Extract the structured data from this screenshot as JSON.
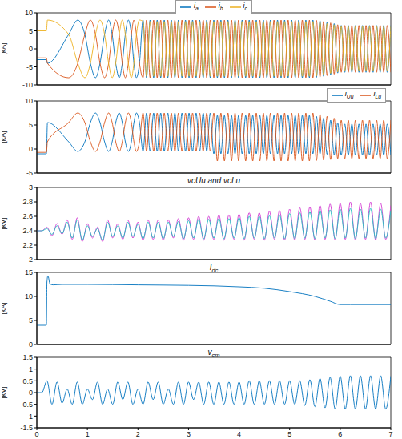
{
  "chart_data": [
    {
      "type": "line",
      "ylabel": "[kA]",
      "legend": "top",
      "tick_labels": "y",
      "grid": false,
      "xlim": [
        0,
        7
      ],
      "xticks": [
        0,
        1,
        2,
        3,
        4,
        5,
        6,
        7
      ],
      "ylim": [
        -10,
        10
      ],
      "yticks": [
        -10,
        -5,
        0,
        5,
        10
      ],
      "x": [
        0,
        0.19,
        0.21,
        0.63,
        0.81,
        0.95,
        1.06,
        1.16,
        1.25,
        1.34,
        1.42,
        1.49,
        1.56,
        1.63,
        1.69,
        1.75,
        1.81,
        1.87,
        1.92,
        1.97,
        2.03,
        2.1,
        2.17,
        2.24,
        2.31,
        2.38,
        2.45,
        2.52,
        2.59,
        2.66,
        2.73,
        2.8,
        2.87,
        2.94,
        3.01,
        3.08,
        3.15,
        3.22,
        3.29,
        3.36,
        3.43,
        3.5,
        3.57,
        3.64,
        3.71,
        3.78,
        3.85,
        3.92,
        3.99,
        4.06,
        4.13,
        4.2,
        4.27,
        4.34,
        4.41,
        4.48,
        4.55,
        4.62,
        4.69,
        4.76,
        4.83,
        4.9,
        4.97,
        5.04,
        5.11,
        5.18,
        5.25,
        5.32,
        5.39,
        5.46,
        5.53,
        5.6,
        5.67,
        5.74,
        5.81,
        5.88,
        5.95,
        6.02,
        6.09,
        6.16,
        6.23,
        6.3,
        6.37,
        6.44,
        6.51,
        6.58,
        6.65,
        6.72,
        6.79,
        6.86,
        6.93,
        7
      ],
      "series": [
        {
          "name": "ia",
          "color": "#0072BD",
          "values": [
            -3,
            -3,
            -4,
            4,
            8,
            4,
            -4,
            -8,
            -4,
            4,
            8,
            4,
            -4,
            -8,
            -4,
            4,
            8,
            4,
            -4,
            -8,
            -4,
            8,
            -8,
            8,
            -8,
            8,
            -8,
            8,
            -8,
            8,
            -8,
            8,
            -8,
            8,
            -8,
            8,
            -8,
            8,
            -8,
            8,
            -8,
            8,
            -8,
            8,
            -8,
            8,
            -8,
            8,
            -8,
            8,
            -8,
            8,
            -8,
            8,
            -8,
            8,
            -8,
            8,
            -8,
            8,
            -8,
            8,
            -8,
            8,
            -8,
            8,
            -8,
            8,
            -8,
            8,
            -7.9,
            7.8,
            -7.6,
            7.4,
            -7.2,
            7,
            -6.7,
            6.5,
            -6.5,
            6.5,
            -6.5,
            6.5,
            -6.5,
            6.5,
            -6.5,
            6.5,
            -6.5,
            6.5,
            -6.5,
            6.5,
            -6.5,
            6.5
          ]
        },
        {
          "name": "ib",
          "color": "#D95319",
          "values": [
            -2.5,
            -2.5,
            -4,
            -8,
            -4,
            4,
            8,
            4,
            -4,
            -8,
            -4,
            4,
            8,
            4,
            -4,
            -8,
            -4,
            4,
            8,
            4,
            -4,
            -8,
            8,
            -8,
            8,
            -8,
            8,
            -8,
            8,
            -8,
            8,
            -8,
            8,
            -8,
            8,
            -8,
            8,
            -8,
            8,
            -8,
            8,
            -8,
            8,
            -8,
            8,
            -8,
            8,
            -8,
            8,
            -8,
            8,
            -8,
            8,
            -8,
            8,
            -8,
            8,
            -8,
            8,
            -8,
            8,
            -8,
            8,
            -8,
            8,
            -8,
            8,
            -8,
            8,
            -8,
            7.9,
            -7.8,
            7.6,
            -7.4,
            7.2,
            -7,
            6.7,
            -6.5,
            6.5,
            -6.5,
            6.5,
            -6.5,
            6.5,
            -6.5,
            6.5,
            -6.5,
            6.5,
            -6.5,
            6.5,
            -6.5,
            6.5,
            -6.5
          ]
        },
        {
          "name": "ic",
          "color": "#EDB120",
          "values": [
            5,
            5,
            8,
            4,
            -4,
            -8,
            -4,
            4,
            8,
            4,
            -4,
            -8,
            -4,
            4,
            8,
            4,
            -4,
            -8,
            -4,
            4,
            8,
            7.6,
            -7.6,
            7.6,
            -7.6,
            7.6,
            -7.6,
            7.6,
            -7.6,
            7.6,
            -7.6,
            7.6,
            -7.6,
            7.6,
            -7.6,
            7.6,
            -7.6,
            7.6,
            -7.6,
            7.6,
            -7.6,
            7.6,
            -7.6,
            7.6,
            -7.6,
            7.6,
            -7.6,
            7.6,
            -7.6,
            7.6,
            -7.6,
            7.6,
            -7.6,
            7.6,
            -7.6,
            7.6,
            -7.6,
            7.6,
            -7.6,
            7.6,
            -7.6,
            7.6,
            -7.6,
            7.6,
            -7.6,
            7.6,
            -7.6,
            7.6,
            -7.6,
            7.6,
            -7.5,
            7.4,
            -7.2,
            7,
            -6.8,
            6.7,
            -6.4,
            6.2,
            -6.2,
            6.2,
            -6.2,
            6.2,
            -6.2,
            6.2,
            -6.2,
            6.2,
            -6.2,
            6.2,
            -6.2,
            6.2,
            -6.2,
            6.2
          ]
        }
      ]
    },
    {
      "type": "line",
      "ylabel": "[kA]",
      "legend": "top right",
      "tick_labels": "y",
      "grid": false,
      "xlim": [
        0,
        7
      ],
      "xticks": [
        0,
        1,
        2,
        3,
        4,
        5,
        6,
        7
      ],
      "ylim": [
        -5,
        10
      ],
      "yticks": [
        -5,
        0,
        5,
        10
      ],
      "x": [
        0,
        0.19,
        0.21,
        0.63,
        0.81,
        0.95,
        1.06,
        1.16,
        1.25,
        1.34,
        1.42,
        1.49,
        1.56,
        1.63,
        1.69,
        1.75,
        1.81,
        1.87,
        1.92,
        1.97,
        2.03,
        2.1,
        2.17,
        2.24,
        2.31,
        2.38,
        2.45,
        2.52,
        2.59,
        2.66,
        2.73,
        2.8,
        2.87,
        2.94,
        3.01,
        3.08,
        3.15,
        3.22,
        3.29,
        3.36,
        3.43,
        3.5,
        3.57,
        3.64,
        3.71,
        3.78,
        3.85,
        3.92,
        3.99,
        4.06,
        4.13,
        4.2,
        4.27,
        4.34,
        4.41,
        4.48,
        4.55,
        4.62,
        4.69,
        4.76,
        4.83,
        4.9,
        4.97,
        5.04,
        5.11,
        5.18,
        5.25,
        5.32,
        5.39,
        5.46,
        5.53,
        5.6,
        5.67,
        5.74,
        5.81,
        5.88,
        5.95,
        6.02,
        6.09,
        6.16,
        6.23,
        6.3,
        6.37,
        6.44,
        6.51,
        6.58,
        6.65,
        6.72,
        6.79,
        6.86,
        6.93,
        7
      ],
      "series": [
        {
          "name": "iUu",
          "color": "#0072BD",
          "values": [
            -1,
            -1,
            5.5,
            1.5,
            -0.5,
            1.5,
            5.5,
            7.5,
            5.5,
            1.5,
            -0.5,
            1.5,
            5.5,
            7.5,
            5.5,
            1.5,
            -0.5,
            1.5,
            5.5,
            7.5,
            5.5,
            -0.5,
            7.5,
            -0.5,
            7.5,
            -0.5,
            7.5,
            -0.5,
            7.5,
            -0.5,
            7.5,
            -0.5,
            7.5,
            -0.5,
            7.5,
            -0.5,
            7.5,
            -0.5,
            7.5,
            -0.5,
            7.5,
            -1,
            7,
            -1,
            7,
            -1,
            7,
            -1,
            7,
            -1,
            7,
            -1,
            7,
            -1,
            7,
            -1,
            7,
            -1,
            7,
            -1,
            7,
            -1,
            7,
            -1,
            7,
            -1,
            7,
            -1,
            7,
            -1,
            6.8,
            -1,
            6.4,
            -1.1,
            6,
            -1.2,
            5.5,
            -1.3,
            5.2,
            -1.3,
            5.2,
            -1.3,
            5.2,
            -1.3,
            5.2,
            -1.3,
            5.2,
            -1.3,
            5.2,
            -1.3,
            5.2,
            -1.3
          ]
        },
        {
          "name": "iLu",
          "color": "#D95319",
          "values": [
            -0.7,
            -0.7,
            1.5,
            5.5,
            7.5,
            5.5,
            1.5,
            -0.5,
            1.5,
            5.5,
            7.5,
            5.5,
            1.5,
            -0.5,
            1.5,
            5.5,
            7.5,
            5.5,
            1.5,
            -0.5,
            1.5,
            7.5,
            -0.5,
            7.5,
            -0.5,
            7.5,
            -0.5,
            7.5,
            -0.5,
            7.5,
            -0.5,
            7.5,
            -0.5,
            7.5,
            -0.5,
            7.5,
            -0.5,
            7.5,
            -0.5,
            7.5,
            -0.5,
            7.5,
            -2.5,
            7.5,
            -2.5,
            7.5,
            -2.5,
            7.5,
            -2.5,
            7.5,
            -2.5,
            7.5,
            -2.5,
            7.5,
            -2.5,
            7.5,
            -2.5,
            7.5,
            -2.5,
            7.5,
            -2.5,
            7.5,
            -2.5,
            7.5,
            -2.5,
            7.5,
            -2.5,
            7.5,
            -2.5,
            7.5,
            -2.4,
            7.2,
            -2.3,
            6.8,
            -2.2,
            6.4,
            -2,
            6,
            -2,
            6,
            -2,
            6,
            -2,
            6,
            -2,
            6,
            -2,
            6,
            -2,
            6,
            -2,
            6
          ]
        }
      ]
    },
    {
      "type": "line",
      "ylabel": "[kV]",
      "annotation": "vcUu and vcLu",
      "tick_labels": "y",
      "grid": false,
      "xlim": [
        0,
        7
      ],
      "xticks": [
        0,
        1,
        2,
        3,
        4,
        5,
        6,
        7
      ],
      "ylim": [
        2,
        3
      ],
      "yticks": [
        2,
        2.2,
        2.4,
        2.6,
        2.8,
        3
      ],
      "x": [
        0,
        0.1,
        0.2,
        0.3,
        0.4,
        0.5,
        0.6,
        0.7,
        0.8,
        0.9,
        1,
        1.1,
        1.2,
        1.3,
        1.4,
        1.5,
        1.6,
        1.7,
        1.8,
        1.9,
        2,
        2.1,
        2.2,
        2.3,
        2.4,
        2.5,
        2.6,
        2.7,
        2.8,
        2.9,
        3,
        3.1,
        3.2,
        3.3,
        3.4,
        3.5,
        3.6,
        3.7,
        3.8,
        3.9,
        4,
        4.1,
        4.2,
        4.3,
        4.4,
        4.5,
        4.6,
        4.7,
        4.8,
        4.9,
        5,
        5.1,
        5.2,
        5.3,
        5.4,
        5.5,
        5.6,
        5.7,
        5.8,
        5.9,
        6,
        6.1,
        6.2,
        6.3,
        6.4,
        6.5,
        6.6,
        6.7,
        6.8,
        6.9,
        7
      ],
      "series": [
        {
          "color": "#D23BD2",
          "values": [
            2.4,
            2.4,
            2.45,
            2.33,
            2.5,
            2.35,
            2.55,
            2.28,
            2.58,
            2.25,
            2.5,
            2.3,
            2.45,
            2.25,
            2.55,
            2.3,
            2.5,
            2.28,
            2.55,
            2.3,
            2.52,
            2.27,
            2.55,
            2.28,
            2.55,
            2.27,
            2.55,
            2.3,
            2.57,
            2.27,
            2.58,
            2.28,
            2.6,
            2.27,
            2.6,
            2.28,
            2.62,
            2.27,
            2.62,
            2.28,
            2.63,
            2.27,
            2.65,
            2.28,
            2.65,
            2.27,
            2.67,
            2.28,
            2.68,
            2.27,
            2.7,
            2.27,
            2.72,
            2.28,
            2.73,
            2.27,
            2.75,
            2.28,
            2.77,
            2.27,
            2.78,
            2.28,
            2.8,
            2.27,
            2.78,
            2.28,
            2.8,
            2.27,
            2.78,
            2.28,
            2.75
          ]
        },
        {
          "color": "#1FBFBF",
          "values": [
            2.4,
            2.4,
            2.43,
            2.35,
            2.47,
            2.36,
            2.52,
            2.3,
            2.55,
            2.27,
            2.47,
            2.32,
            2.43,
            2.27,
            2.52,
            2.32,
            2.47,
            2.3,
            2.52,
            2.32,
            2.49,
            2.29,
            2.52,
            2.3,
            2.52,
            2.29,
            2.52,
            2.32,
            2.53,
            2.29,
            2.54,
            2.3,
            2.56,
            2.29,
            2.56,
            2.3,
            2.57,
            2.29,
            2.57,
            2.3,
            2.58,
            2.29,
            2.6,
            2.3,
            2.6,
            2.29,
            2.61,
            2.3,
            2.62,
            2.29,
            2.64,
            2.29,
            2.65,
            2.3,
            2.66,
            2.29,
            2.68,
            2.3,
            2.69,
            2.29,
            2.7,
            2.3,
            2.71,
            2.29,
            2.7,
            2.3,
            2.71,
            2.29,
            2.7,
            2.3,
            2.68
          ]
        }
      ]
    },
    {
      "type": "line",
      "ylabel": "[kA]",
      "annotation": "Idc",
      "tick_labels": "y",
      "grid": false,
      "xlim": [
        0,
        7
      ],
      "xticks": [
        0,
        1,
        2,
        3,
        4,
        5,
        6,
        7
      ],
      "ylim": [
        0,
        15
      ],
      "yticks": [
        0,
        5,
        10,
        15
      ],
      "x": [
        0,
        0.19,
        0.2,
        0.22,
        0.26,
        0.32,
        0.5,
        1,
        2,
        3,
        3.5,
        4,
        4.5,
        5,
        5.5,
        5.8,
        6,
        6.2,
        7
      ],
      "series": [
        {
          "color": "#0072BD",
          "values": [
            4,
            4,
            13,
            14.3,
            12.6,
            12.4,
            12.5,
            12.5,
            12.4,
            12.3,
            12.2,
            12,
            11.7,
            11,
            10,
            9,
            8.3,
            8.3,
            8.3
          ]
        }
      ]
    },
    {
      "type": "line",
      "ylabel": "[kV]",
      "annotation": "vcm",
      "grid": false,
      "xlim": [
        0,
        7
      ],
      "xticks": [
        0,
        1,
        2,
        3,
        4,
        5,
        6,
        7
      ],
      "ylim": [
        -1.5,
        1.5
      ],
      "yticks": [
        -1.5,
        -1,
        -0.5,
        0,
        0.5,
        1,
        1.5
      ],
      "x": [
        0,
        0.1,
        0.2,
        0.3,
        0.4,
        0.5,
        0.6,
        0.7,
        0.8,
        0.9,
        1,
        1.1,
        1.2,
        1.3,
        1.4,
        1.5,
        1.6,
        1.7,
        1.8,
        1.9,
        2,
        2.1,
        2.2,
        2.3,
        2.4,
        2.5,
        2.6,
        2.7,
        2.8,
        2.9,
        3,
        3.1,
        3.2,
        3.3,
        3.4,
        3.5,
        3.6,
        3.7,
        3.8,
        3.9,
        4,
        4.1,
        4.2,
        4.3,
        4.4,
        4.5,
        4.6,
        4.7,
        4.8,
        4.9,
        5,
        5.1,
        5.2,
        5.3,
        5.4,
        5.5,
        5.6,
        5.7,
        5.8,
        5.9,
        6,
        6.1,
        6.2,
        6.3,
        6.4,
        6.5,
        6.6,
        6.7,
        6.8,
        6.9,
        7
      ],
      "series": [
        {
          "color": "#0072BD",
          "values": [
            0,
            0,
            0.5,
            -0.5,
            0.45,
            -0.45,
            0.15,
            -0.5,
            0.45,
            -0.5,
            0.15,
            -0.3,
            0.45,
            -0.5,
            0.15,
            -0.5,
            0.45,
            -0.3,
            0.45,
            -0.5,
            0.15,
            -0.5,
            0.45,
            -0.3,
            0.45,
            -0.5,
            0.15,
            -0.5,
            0.45,
            -0.5,
            0.45,
            -0.3,
            0.45,
            -0.5,
            0.45,
            -0.5,
            0.45,
            -0.5,
            0.45,
            -0.5,
            0.45,
            -0.5,
            0.5,
            -0.5,
            0.5,
            -0.5,
            0.5,
            -0.5,
            0.5,
            -0.5,
            0.5,
            -0.5,
            0.5,
            -0.55,
            0.55,
            -0.6,
            0.6,
            -0.65,
            0.65,
            -0.7,
            0.7,
            -0.7,
            0.72,
            -0.7,
            0.72,
            -0.7,
            0.72,
            -0.7,
            0.72,
            -0.7,
            0.7
          ]
        }
      ]
    }
  ]
}
